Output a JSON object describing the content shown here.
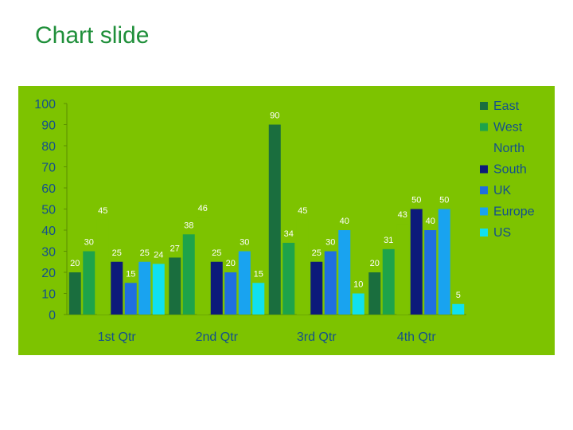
{
  "slide": {
    "title": "Chart slide"
  },
  "chart_data": {
    "type": "bar",
    "categories": [
      "1st Qtr",
      "2nd Qtr",
      "3rd Qtr",
      "4th Qtr"
    ],
    "series": [
      {
        "name": "East",
        "color": "#1a6e3e",
        "values": [
          20,
          27,
          90,
          20
        ]
      },
      {
        "name": "West",
        "color": "#1ea34a",
        "values": [
          30,
          38,
          34,
          31
        ]
      },
      {
        "name": "North",
        "color": "#7dc300",
        "values": [
          45,
          46,
          45,
          43
        ]
      },
      {
        "name": "South",
        "color": "#0c1a7a",
        "values": [
          25,
          25,
          25,
          50
        ]
      },
      {
        "name": "UK",
        "color": "#1f6fe0",
        "values": [
          15,
          20,
          30,
          40
        ]
      },
      {
        "name": "Europe",
        "color": "#19a3f0",
        "values": [
          25,
          30,
          40,
          50
        ]
      },
      {
        "name": "US",
        "color": "#10e0f0",
        "values": [
          24,
          15,
          10,
          5
        ]
      }
    ],
    "yticks": [
      "0",
      "10",
      "20",
      "30",
      "40",
      "50",
      "60",
      "70",
      "80",
      "90",
      "100"
    ],
    "ylim": [
      0,
      100
    ],
    "legend": "right",
    "grid": false
  }
}
